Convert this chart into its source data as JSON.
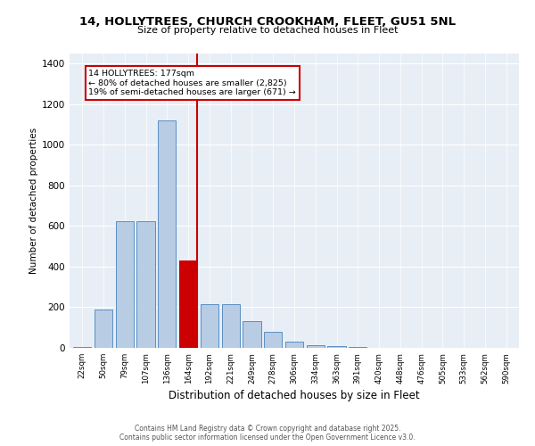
{
  "title": "14, HOLLYTREES, CHURCH CROOKHAM, FLEET, GU51 5NL",
  "subtitle": "Size of property relative to detached houses in Fleet",
  "xlabel": "Distribution of detached houses by size in Fleet",
  "ylabel": "Number of detached properties",
  "categories": [
    "22sqm",
    "50sqm",
    "79sqm",
    "107sqm",
    "136sqm",
    "164sqm",
    "192sqm",
    "221sqm",
    "249sqm",
    "278sqm",
    "306sqm",
    "334sqm",
    "363sqm",
    "391sqm",
    "420sqm",
    "448sqm",
    "476sqm",
    "505sqm",
    "533sqm",
    "562sqm",
    "590sqm"
  ],
  "values": [
    5,
    190,
    625,
    625,
    1120,
    430,
    215,
    215,
    130,
    80,
    30,
    15,
    8,
    3,
    2,
    1,
    1,
    0,
    0,
    0,
    0
  ],
  "bar_color": "#b8cce4",
  "bar_edge_color": "#5a8fc3",
  "highlight_index": 5,
  "highlight_color": "#cc0000",
  "annotation_title": "14 HOLLYTREES: 177sqm",
  "annotation_line1": "← 80% of detached houses are smaller (2,825)",
  "annotation_line2": "19% of semi-detached houses are larger (671) →",
  "annotation_box_color": "#cc0000",
  "ylim": [
    0,
    1450
  ],
  "yticks": [
    0,
    200,
    400,
    600,
    800,
    1000,
    1200,
    1400
  ],
  "bg_color": "#e8eef5",
  "footer_line1": "Contains HM Land Registry data © Crown copyright and database right 2025.",
  "footer_line2": "Contains public sector information licensed under the Open Government Licence v3.0."
}
